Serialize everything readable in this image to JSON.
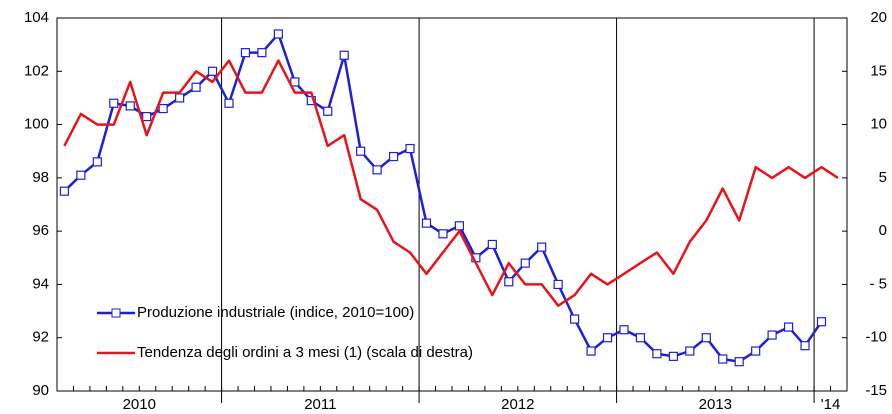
{
  "chart_data": {
    "type": "line",
    "categories": [
      null,
      null,
      null,
      null,
      null,
      null,
      null,
      null,
      null,
      null,
      null,
      null,
      null,
      null,
      null,
      null,
      null,
      null,
      null,
      null,
      null,
      null,
      null,
      null,
      null,
      null,
      null,
      null,
      null,
      null,
      null,
      null,
      null,
      null,
      null,
      null,
      null,
      null,
      null,
      null,
      null,
      null,
      null,
      null,
      null,
      null,
      null,
      null
    ],
    "year_groups": [
      {
        "label": "2010",
        "months": 10
      },
      {
        "label": "2011",
        "months": 12
      },
      {
        "label": "2012",
        "months": 12
      },
      {
        "label": "2013",
        "months": 12
      },
      {
        "label": "'14",
        "months": 2
      }
    ],
    "series": [
      {
        "name": "Produzione industriale (indice, 2010=100)",
        "color": "#1f1fd6",
        "axis": "y",
        "marker": "square",
        "values": [
          97.5,
          98.1,
          98.6,
          100.8,
          100.7,
          100.3,
          100.6,
          101.0,
          101.4,
          102.0,
          100.8,
          102.7,
          102.7,
          103.4,
          101.6,
          100.9,
          100.5,
          102.6,
          99.0,
          98.3,
          98.8,
          99.1,
          96.3,
          95.9,
          96.2,
          95.0,
          95.5,
          94.1,
          94.8,
          95.4,
          94.0,
          92.7,
          91.5,
          92.0,
          92.3,
          92.0,
          91.4,
          91.3,
          91.5,
          92.0,
          91.2,
          91.1,
          91.5,
          92.1,
          92.4,
          91.7,
          92.6,
          null
        ]
      },
      {
        "name": "Tendenza degli ordini a 3 mesi (1) (scala di destra)",
        "color": "#e8141c",
        "axis": "y2",
        "values": [
          8,
          11,
          10,
          10,
          14,
          9,
          13,
          13,
          15,
          14,
          16,
          13,
          13,
          16,
          13,
          13,
          8,
          9,
          3,
          2,
          -1,
          -2,
          -4,
          -2,
          0,
          -3,
          -6,
          -3,
          -5,
          -5,
          -7,
          -6,
          -4,
          -5,
          -4,
          -3,
          -2,
          -4,
          -1,
          1,
          4,
          1,
          6,
          5,
          6,
          5,
          6,
          5
        ]
      }
    ],
    "ylim": [
      90,
      104
    ],
    "yticks": [
      90,
      92,
      94,
      96,
      98,
      100,
      102,
      104
    ],
    "y2lim": [
      -15,
      20
    ],
    "y2ticks": [
      -15,
      -10,
      {
        "value": -5,
        "label": "- 5"
      },
      0,
      5,
      10,
      15,
      20
    ],
    "grid": "years"
  }
}
